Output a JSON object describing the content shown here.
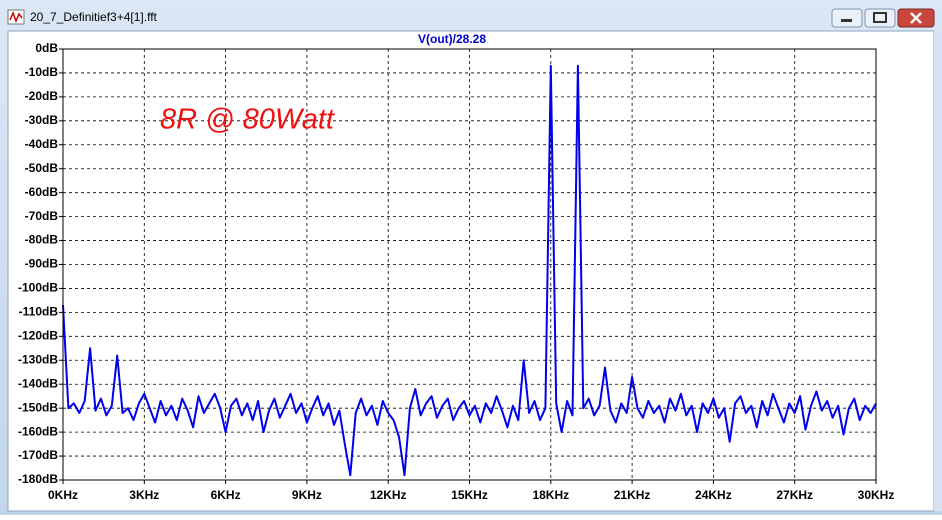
{
  "window": {
    "title": "20_7_Definitief3+4[1].fft"
  },
  "chart_data": {
    "type": "line",
    "title": "V(out)/28.28",
    "annotation": "8R @ 80Watt",
    "x": [
      0,
      0.2,
      0.4,
      0.6,
      0.8,
      1,
      1.2,
      1.4,
      1.6,
      1.8,
      2,
      2.2,
      2.4,
      2.6,
      2.8,
      3,
      3.2,
      3.4,
      3.6,
      3.8,
      4,
      4.2,
      4.4,
      4.6,
      4.8,
      5,
      5.2,
      5.4,
      5.6,
      5.8,
      6,
      6.2,
      6.4,
      6.6,
      6.8,
      7,
      7.2,
      7.4,
      7.6,
      7.8,
      8,
      8.2,
      8.4,
      8.6,
      8.8,
      9,
      9.2,
      9.4,
      9.6,
      9.8,
      10,
      10.2,
      10.4,
      10.6,
      10.8,
      11,
      11.2,
      11.4,
      11.6,
      11.8,
      12,
      12.2,
      12.4,
      12.6,
      12.8,
      13,
      13.2,
      13.4,
      13.6,
      13.8,
      14,
      14.2,
      14.4,
      14.6,
      14.8,
      15,
      15.2,
      15.4,
      15.6,
      15.8,
      16,
      16.2,
      16.4,
      16.6,
      16.8,
      17,
      17.2,
      17.4,
      17.6,
      17.8,
      18,
      18.2,
      18.4,
      18.6,
      18.8,
      19,
      19.2,
      19.4,
      19.6,
      19.8,
      20,
      20.2,
      20.4,
      20.6,
      20.8,
      21,
      21.2,
      21.4,
      21.6,
      21.8,
      22,
      22.2,
      22.4,
      22.6,
      22.8,
      23,
      23.2,
      23.4,
      23.6,
      23.8,
      24,
      24.2,
      24.4,
      24.6,
      24.8,
      25,
      25.2,
      25.4,
      25.6,
      25.8,
      26,
      26.2,
      26.4,
      26.6,
      26.8,
      27,
      27.2,
      27.4,
      27.6,
      27.8,
      28,
      28.2,
      28.4,
      28.6,
      28.8,
      29,
      29.2,
      29.4,
      29.6,
      29.8,
      30
    ],
    "series": [
      {
        "name": "V(out)/28.28",
        "color": "#0000ee",
        "values": [
          -107,
          -150,
          -148,
          -152,
          -147,
          -125,
          -151,
          -146,
          -153,
          -149,
          -128,
          -152,
          -150,
          -155,
          -148,
          -144,
          -150,
          -156,
          -147,
          -153,
          -149,
          -155,
          -146,
          -151,
          -158,
          -145,
          -152,
          -148,
          -144,
          -150,
          -160,
          -149,
          -146,
          -153,
          -148,
          -155,
          -147,
          -160,
          -151,
          -146,
          -154,
          -149,
          -144,
          -152,
          -148,
          -156,
          -150,
          -145,
          -153,
          -148,
          -157,
          -151,
          -165,
          -178,
          -152,
          -146,
          -153,
          -149,
          -157,
          -147,
          -152,
          -155,
          -162,
          -178,
          -150,
          -142,
          -153,
          -148,
          -145,
          -154,
          -149,
          -146,
          -155,
          -150,
          -147,
          -153,
          -149,
          -156,
          -148,
          -152,
          -145,
          -151,
          -158,
          -149,
          -155,
          -130,
          -152,
          -147,
          -155,
          -150,
          -7,
          -148,
          -160,
          -147,
          -153,
          -7,
          -150,
          -146,
          -153,
          -149,
          -133,
          -151,
          -156,
          -148,
          -152,
          -137,
          -150,
          -154,
          -147,
          -152,
          -149,
          -156,
          -146,
          -151,
          -144,
          -153,
          -149,
          -160,
          -148,
          -152,
          -146,
          -154,
          -150,
          -164,
          -148,
          -145,
          -152,
          -149,
          -158,
          -147,
          -153,
          -144,
          -150,
          -156,
          -148,
          -152,
          -145,
          -159,
          -149,
          -143,
          -151,
          -147,
          -154,
          -149,
          -161,
          -150,
          -146,
          -155,
          -149,
          -152,
          -148
        ]
      }
    ],
    "xlim": [
      0,
      30
    ],
    "xticks": [
      {
        "value": 0,
        "label": "0KHz"
      },
      {
        "value": 3,
        "label": "3KHz"
      },
      {
        "value": 6,
        "label": "6KHz"
      },
      {
        "value": 9,
        "label": "9KHz"
      },
      {
        "value": 12,
        "label": "12KHz"
      },
      {
        "value": 15,
        "label": "15KHz"
      },
      {
        "value": 18,
        "label": "18KHz"
      },
      {
        "value": 21,
        "label": "21KHz"
      },
      {
        "value": 24,
        "label": "24KHz"
      },
      {
        "value": 27,
        "label": "27KHz"
      },
      {
        "value": 30,
        "label": "30KHz"
      }
    ],
    "ylim": [
      -180,
      0
    ],
    "yticks": [
      {
        "value": 0,
        "label": "0dB"
      },
      {
        "value": -10,
        "label": "-10dB"
      },
      {
        "value": -20,
        "label": "-20dB"
      },
      {
        "value": -30,
        "label": "-30dB"
      },
      {
        "value": -40,
        "label": "-40dB"
      },
      {
        "value": -50,
        "label": "-50dB"
      },
      {
        "value": -60,
        "label": "-60dB"
      },
      {
        "value": -70,
        "label": "-70dB"
      },
      {
        "value": -80,
        "label": "-80dB"
      },
      {
        "value": -90,
        "label": "-90dB"
      },
      {
        "value": -100,
        "label": "-100dB"
      },
      {
        "value": -110,
        "label": "-110dB"
      },
      {
        "value": -120,
        "label": "-120dB"
      },
      {
        "value": -130,
        "label": "-130dB"
      },
      {
        "value": -140,
        "label": "-140dB"
      },
      {
        "value": -150,
        "label": "-150dB"
      },
      {
        "value": -160,
        "label": "-160dB"
      },
      {
        "value": -170,
        "label": "-170dB"
      },
      {
        "value": -180,
        "label": "-180dB"
      }
    ],
    "grid": true
  }
}
